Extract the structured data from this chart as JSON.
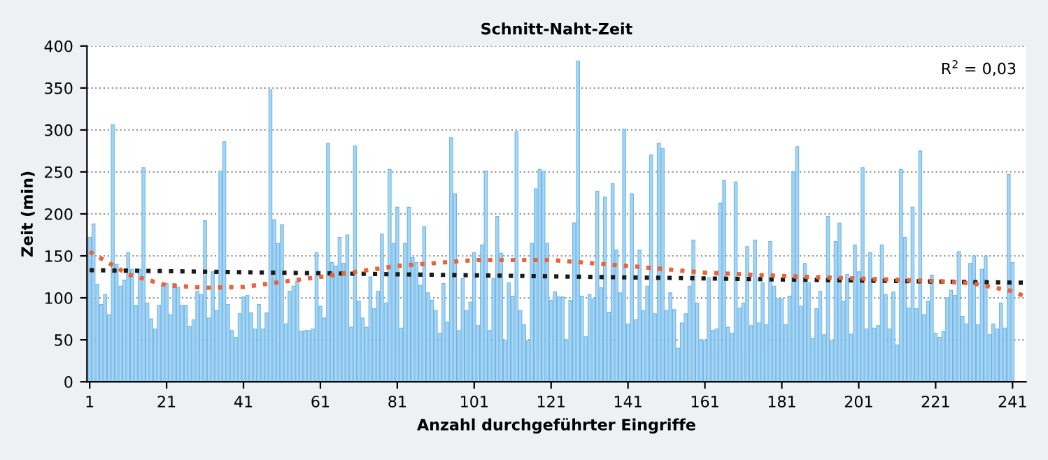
{
  "chart_data": {
    "type": "bar",
    "title": "Schnitt-Naht-Zeit",
    "xlabel": "Anzahl durchgeführter Eingriffe",
    "ylabel": "Zeit (min)",
    "series": [
      {
        "color": "#a8d4f2",
        "x": [
          1,
          2,
          3,
          4,
          5,
          6,
          7,
          8,
          9,
          10,
          11,
          12,
          13,
          14,
          15,
          16,
          17,
          18,
          19,
          20,
          21,
          22,
          23,
          24,
          25,
          26,
          27,
          28,
          29,
          30,
          31,
          32,
          33,
          34,
          35,
          36,
          37,
          38,
          39,
          40,
          41,
          42,
          43,
          44,
          45,
          46,
          47,
          48,
          49,
          50,
          51,
          52,
          53,
          54,
          55,
          56,
          57,
          58,
          59,
          60,
          61,
          62,
          63,
          64,
          65,
          66,
          67,
          68,
          69,
          70,
          71,
          72,
          73,
          74,
          75,
          76,
          77,
          78,
          79,
          80,
          81,
          82,
          83,
          84,
          85,
          86,
          87,
          88,
          89,
          90,
          91,
          92,
          93,
          94,
          95,
          96,
          97,
          98,
          99,
          100,
          101,
          102,
          103,
          104,
          105,
          106,
          107,
          108,
          109,
          110,
          111,
          112,
          113,
          114,
          115,
          116,
          117,
          118,
          119,
          120,
          121,
          122,
          123,
          124,
          125,
          126,
          127,
          128,
          129,
          130,
          131,
          132,
          133,
          134,
          135,
          136,
          137,
          138,
          139,
          140,
          141,
          142,
          143,
          144,
          145,
          146,
          147,
          148,
          149,
          150,
          151,
          152,
          153,
          154,
          155,
          156,
          157,
          158,
          159,
          160,
          161,
          162,
          163,
          164,
          165,
          166,
          167,
          168,
          169,
          170,
          171,
          172,
          173,
          174,
          175,
          176,
          177,
          178,
          179,
          180,
          181,
          182,
          183,
          184,
          185,
          186,
          187,
          188,
          189,
          190,
          191,
          192,
          193,
          194,
          195,
          196,
          197,
          198,
          199,
          200,
          201,
          202,
          203,
          204,
          205,
          206,
          207,
          208,
          209,
          210,
          211,
          212,
          213,
          214,
          215,
          216,
          217,
          218,
          219,
          220,
          221,
          222,
          223,
          224,
          225,
          226,
          227,
          228,
          229,
          230,
          231,
          232,
          233,
          234,
          235,
          236,
          237,
          238,
          239,
          240,
          241
        ],
        "values": [
          172,
          188,
          116,
          92,
          104,
          80,
          306,
          140,
          114,
          121,
          154,
          134,
          91,
          134,
          255,
          94,
          75,
          63,
          91,
          114,
          117,
          80,
          117,
          113,
          91,
          91,
          66,
          74,
          108,
          104,
          192,
          76,
          131,
          85,
          251,
          286,
          92,
          61,
          53,
          81,
          101,
          103,
          82,
          63,
          92,
          63,
          82,
          348,
          193,
          165,
          187,
          69,
          108,
          114,
          120,
          60,
          61,
          61,
          63,
          154,
          90,
          76,
          284,
          142,
          138,
          172,
          141,
          175,
          65,
          281,
          96,
          76,
          65,
          125,
          87,
          108,
          176,
          94,
          253,
          165,
          208,
          64,
          165,
          208,
          148,
          142,
          115,
          185,
          106,
          97,
          85,
          58,
          117,
          71,
          291,
          224,
          61,
          123,
          85,
          95,
          154,
          67,
          163,
          251,
          61,
          123,
          197,
          153,
          49,
          118,
          102,
          298,
          85,
          68,
          49,
          165,
          230,
          253,
          251,
          165,
          97,
          107,
          101,
          101,
          50,
          97,
          189,
          382,
          102,
          54,
          104,
          99,
          227,
          112,
          220,
          83,
          236,
          157,
          106,
          301,
          69,
          224,
          74,
          157,
          85,
          114,
          270,
          81,
          284,
          278,
          85,
          106,
          86,
          40,
          70,
          81,
          114,
          169,
          94,
          50,
          49,
          124,
          61,
          63,
          213,
          240,
          65,
          58,
          238,
          88,
          94,
          161,
          67,
          169,
          70,
          118,
          68,
          167,
          114,
          99,
          99,
          68,
          102,
          250,
          280,
          90,
          141,
          118,
          52,
          87,
          108,
          56,
          197,
          49,
          167,
          189,
          96,
          128,
          57,
          163,
          131,
          255,
          63,
          154,
          64,
          67,
          163,
          104,
          63,
          107,
          44,
          253,
          172,
          88,
          208,
          87,
          275,
          80,
          96,
          127,
          58,
          53,
          60,
          100,
          109,
          103,
          155,
          78,
          69,
          141,
          150,
          68,
          134,
          150,
          56,
          69,
          63,
          94,
          64,
          247,
          142
        ]
      },
      {
        "type": "line",
        "color": "#1a1a1a",
        "line_style": "dotted",
        "x": [
          1,
          244
        ],
        "values": [
          133,
          118
        ]
      },
      {
        "type": "line",
        "color": "#e8643a",
        "line_style": "dotted",
        "x": [
          1,
          11,
          21,
          31,
          41,
          61,
          81,
          101,
          121,
          141,
          161,
          181,
          201,
          221,
          231,
          241,
          244
        ],
        "values": [
          155,
          128,
          115,
          112,
          113,
          125,
          138,
          145,
          145,
          138,
          130,
          126,
          123,
          120,
          117,
          108,
          102
        ]
      }
    ],
    "xlim": [
      0.3,
      244.5
    ],
    "xticks": [
      1,
      21,
      41,
      61,
      81,
      101,
      121,
      141,
      161,
      181,
      201,
      221,
      241
    ],
    "ylim": [
      0,
      400
    ],
    "yticks": [
      0,
      50,
      100,
      150,
      200,
      250,
      300,
      350,
      400
    ],
    "grid": "y",
    "annotations": [
      "R$^{2}$ = 0,03"
    ]
  }
}
